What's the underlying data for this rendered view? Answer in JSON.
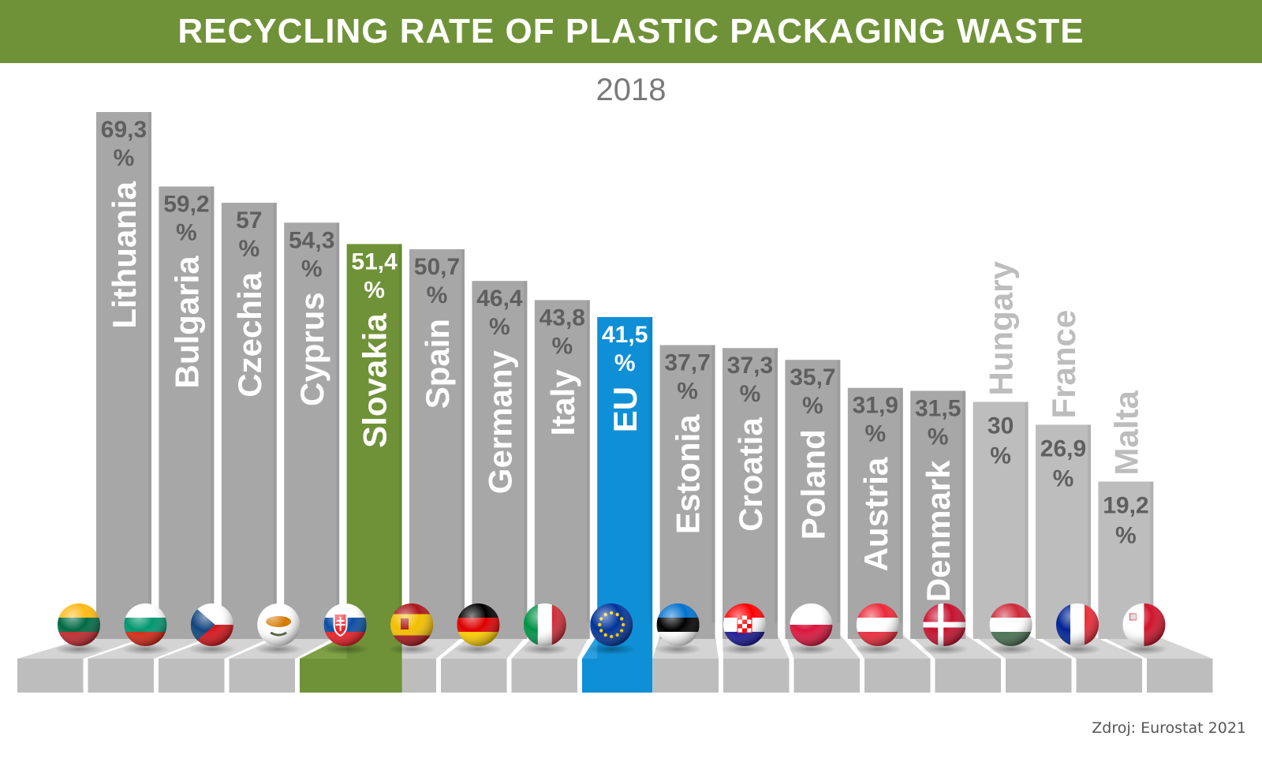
{
  "title": "RECYCLING RATE OF PLASTIC PACKAGING WASTE",
  "subtitle": "2018",
  "source": "Zdroj: Eurostat 2021",
  "colors": {
    "title_bar": "#6f9238",
    "bar_gray": "#a7a7a7",
    "bar_light_gray": "#bdbdbd",
    "highlight_slovakia": "#6f9238",
    "highlight_eu": "#0f8fd6",
    "value_text": "#5f5f5f"
  },
  "chart_data": {
    "type": "bar",
    "title": "RECYCLING RATE OF PLASTIC PACKAGING WASTE",
    "subtitle": "2018",
    "unit": "%",
    "ylim": [
      0,
      70
    ],
    "categories": [
      "Lithuania",
      "Bulgaria",
      "Czechia",
      "Cyprus",
      "Slovakia",
      "Spain",
      "Germany",
      "Italy",
      "EU",
      "Estonia",
      "Croatia",
      "Poland",
      "Austria",
      "Denmark",
      "Hungary",
      "France",
      "Malta"
    ],
    "values": [
      69.3,
      59.2,
      57,
      54.3,
      51.4,
      50.7,
      46.4,
      43.8,
      41.5,
      37.7,
      37.3,
      35.7,
      31.9,
      31.5,
      30,
      26.9,
      19.2
    ],
    "value_labels": [
      "69,3",
      "59,2",
      "57",
      "54,3",
      "51,4",
      "50,7",
      "46,4",
      "43,8",
      "41,5",
      "37,7",
      "37,3",
      "35,7",
      "31,9",
      "31,5",
      "30",
      "26,9",
      "19,2"
    ],
    "percent_sign": "%",
    "highlights": {
      "Slovakia": "green",
      "EU": "blue"
    },
    "flags": [
      "lithuania-flag",
      "bulgaria-flag",
      "czechia-flag",
      "cyprus-flag",
      "slovakia-flag",
      "spain-flag",
      "germany-flag",
      "italy-flag",
      "eu-flag",
      "estonia-flag",
      "croatia-flag",
      "poland-flag",
      "austria-flag",
      "denmark-flag",
      "hungary-flag",
      "france-flag",
      "malta-flag"
    ],
    "grid": false,
    "legend": "none"
  }
}
